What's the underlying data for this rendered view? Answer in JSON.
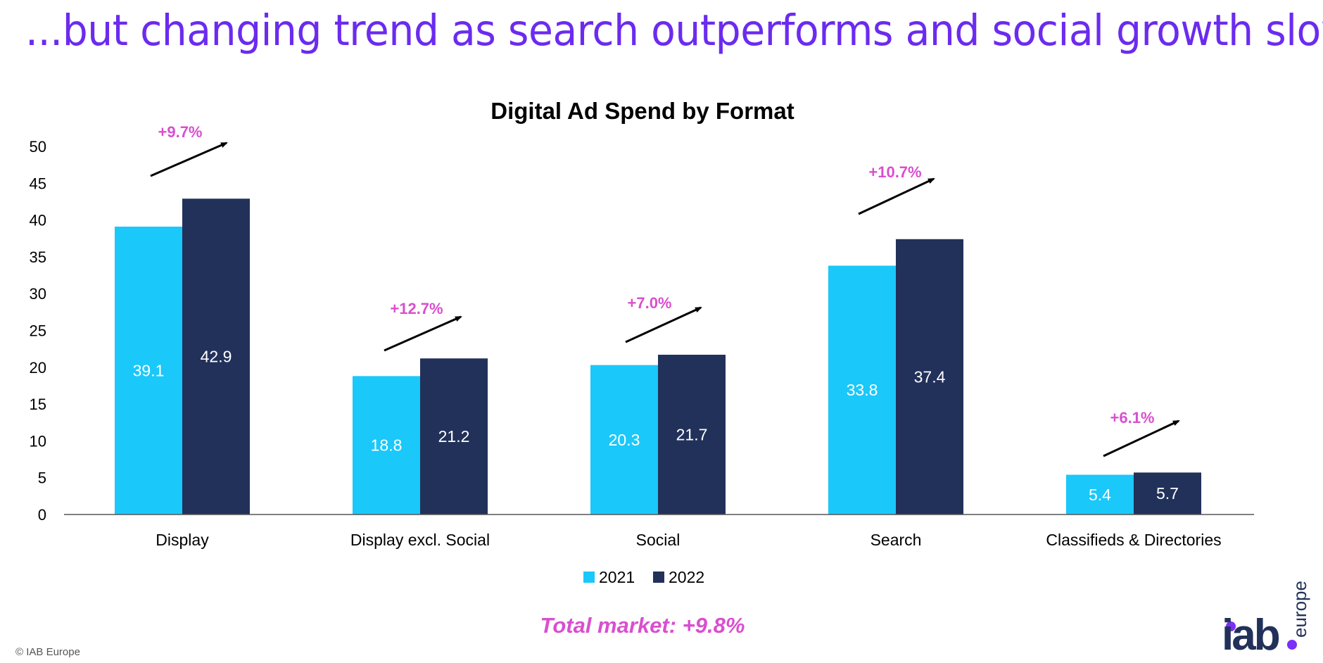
{
  "slide_title": "...but changing trend as search outperforms and social growth slows",
  "footer": "© IAB Europe",
  "logo": {
    "text": "iab.europe",
    "colors": {
      "text": "#22315A",
      "dot": "#7B2FF7"
    }
  },
  "colors": {
    "2021": "#1AC8FA",
    "2022": "#22315A",
    "growth": "#D94FCF",
    "title": "#6B2BEF"
  },
  "chart_data": {
    "type": "bar",
    "title": "Digital Ad Spend by Format",
    "categories": [
      "Display",
      "Display excl. Social",
      "Social",
      "Search",
      "Classifieds & Directories"
    ],
    "series": [
      {
        "name": "2021",
        "values": [
          39.1,
          18.8,
          20.3,
          33.8,
          5.4
        ]
      },
      {
        "name": "2022",
        "values": [
          42.9,
          21.2,
          21.7,
          37.4,
          5.7
        ]
      }
    ],
    "growth_labels": [
      "+9.7%",
      "+12.7%",
      "+7.0%",
      "+10.7%",
      "+6.1%"
    ],
    "yticks": [
      "0",
      "5",
      "10",
      "15",
      "20",
      "25",
      "30",
      "35",
      "40",
      "45",
      "50"
    ],
    "ylim": [
      0,
      50
    ],
    "grid": false,
    "legend": "bottom",
    "annotation": "Total market: +9.8%"
  }
}
